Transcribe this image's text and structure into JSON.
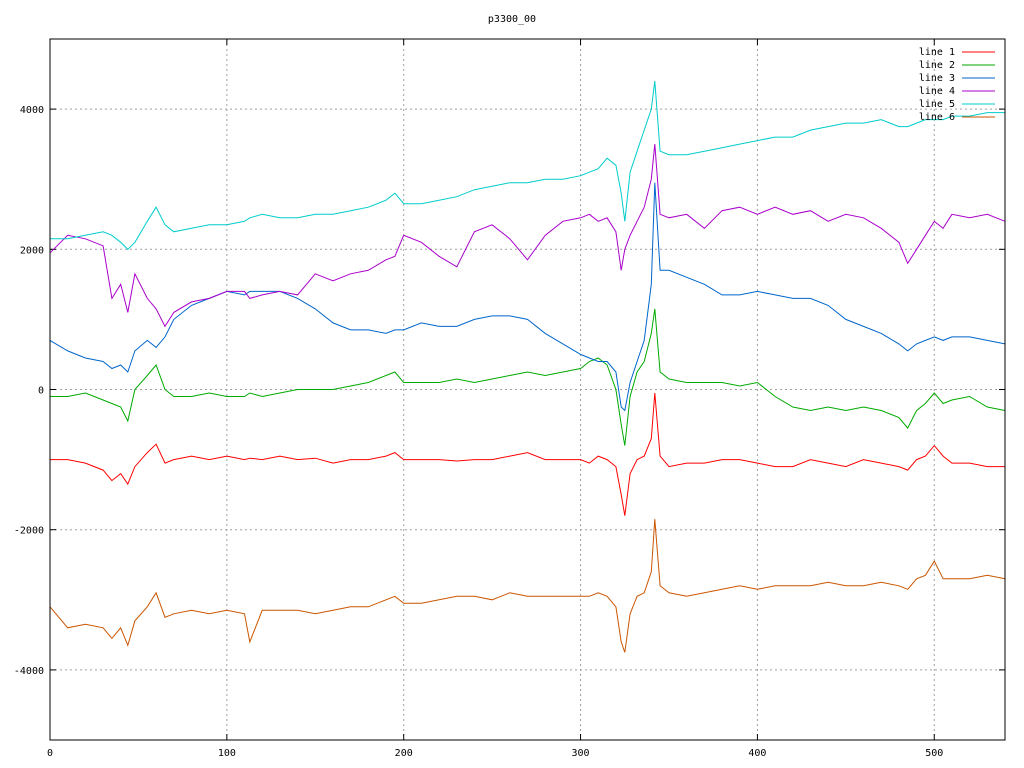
{
  "chart_data": {
    "type": "line",
    "title": "p3300_00",
    "xlim": [
      0,
      540
    ],
    "ylim": [
      -5000,
      5000
    ],
    "x_ticks": [
      0,
      100,
      200,
      300,
      400,
      500
    ],
    "y_ticks": [
      -4000,
      -2000,
      0,
      2000,
      4000
    ],
    "y_tick_labels": [
      "-4000",
      "-2000",
      "0",
      "2000",
      "4000"
    ],
    "grid": true,
    "legend_position": "top-right",
    "x": [
      0,
      10,
      20,
      30,
      35,
      40,
      44,
      48,
      55,
      60,
      65,
      70,
      80,
      90,
      100,
      110,
      113,
      120,
      130,
      140,
      150,
      160,
      170,
      180,
      190,
      195,
      200,
      210,
      220,
      230,
      240,
      250,
      260,
      270,
      280,
      290,
      300,
      305,
      310,
      315,
      320,
      323,
      325,
      328,
      332,
      336,
      340,
      342,
      345,
      350,
      360,
      370,
      380,
      390,
      400,
      410,
      420,
      430,
      440,
      450,
      460,
      470,
      480,
      485,
      490,
      495,
      500,
      505,
      510,
      520,
      530,
      540
    ],
    "series": [
      {
        "name": "line 1",
        "color": "#ff0000",
        "values": [
          -1000,
          -1000,
          -1050,
          -1150,
          -1300,
          -1200,
          -1350,
          -1100,
          -900,
          -780,
          -1050,
          -1000,
          -950,
          -1000,
          -950,
          -1000,
          -980,
          -1000,
          -950,
          -1000,
          -980,
          -1050,
          -1000,
          -1000,
          -950,
          -900,
          -1000,
          -1000,
          -1000,
          -1020,
          -1000,
          -1000,
          -950,
          -900,
          -1000,
          -1000,
          -1000,
          -1050,
          -950,
          -1000,
          -1100,
          -1500,
          -1800,
          -1200,
          -1000,
          -950,
          -700,
          -50,
          -950,
          -1100,
          -1050,
          -1050,
          -1000,
          -1000,
          -1050,
          -1100,
          -1100,
          -1000,
          -1050,
          -1100,
          -1000,
          -1050,
          -1100,
          -1150,
          -1000,
          -950,
          -800,
          -950,
          -1050,
          -1050,
          -1100,
          -1100
        ]
      },
      {
        "name": "line 2",
        "color": "#00aa00",
        "values": [
          -100,
          -100,
          -50,
          -150,
          -200,
          -250,
          -450,
          0,
          200,
          350,
          0,
          -100,
          -100,
          -50,
          -100,
          -100,
          -50,
          -100,
          -50,
          0,
          0,
          0,
          50,
          100,
          200,
          250,
          100,
          100,
          100,
          150,
          100,
          150,
          200,
          250,
          200,
          250,
          300,
          400,
          450,
          350,
          0,
          -500,
          -800,
          -100,
          250,
          400,
          800,
          1150,
          250,
          150,
          100,
          100,
          100,
          50,
          100,
          -100,
          -250,
          -300,
          -250,
          -300,
          -250,
          -300,
          -400,
          -550,
          -300,
          -200,
          -50,
          -200,
          -150,
          -100,
          -250,
          -300
        ]
      },
      {
        "name": "line 3",
        "color": "#0066cc",
        "values": [
          700,
          550,
          450,
          400,
          300,
          350,
          250,
          550,
          700,
          600,
          750,
          1000,
          1200,
          1300,
          1400,
          1350,
          1400,
          1400,
          1400,
          1300,
          1150,
          950,
          850,
          850,
          800,
          850,
          850,
          950,
          900,
          900,
          1000,
          1050,
          1050,
          1000,
          800,
          650,
          500,
          450,
          400,
          400,
          250,
          -250,
          -300,
          100,
          400,
          700,
          1500,
          2950,
          1700,
          1700,
          1600,
          1500,
          1350,
          1350,
          1400,
          1350,
          1300,
          1300,
          1200,
          1000,
          900,
          800,
          650,
          550,
          650,
          700,
          750,
          700,
          750,
          750,
          700,
          650
        ]
      },
      {
        "name": "line 4",
        "color": "#aa00cc",
        "values": [
          1950,
          2200,
          2150,
          2050,
          1300,
          1500,
          1100,
          1650,
          1300,
          1150,
          900,
          1100,
          1250,
          1300,
          1400,
          1400,
          1300,
          1350,
          1400,
          1350,
          1650,
          1550,
          1650,
          1700,
          1850,
          1900,
          2200,
          2100,
          1900,
          1750,
          2250,
          2350,
          2150,
          1850,
          2200,
          2400,
          2450,
          2500,
          2400,
          2450,
          2250,
          1700,
          2000,
          2200,
          2400,
          2600,
          3000,
          3500,
          2500,
          2450,
          2500,
          2300,
          2550,
          2600,
          2500,
          2600,
          2500,
          2550,
          2400,
          2500,
          2450,
          2300,
          2100,
          1800,
          2000,
          2200,
          2400,
          2300,
          2500,
          2450,
          2500,
          2400
        ]
      },
      {
        "name": "line 5",
        "color": "#00cccc",
        "values": [
          2150,
          2150,
          2200,
          2250,
          2200,
          2100,
          2000,
          2100,
          2400,
          2600,
          2350,
          2250,
          2300,
          2350,
          2350,
          2400,
          2450,
          2500,
          2450,
          2450,
          2500,
          2500,
          2550,
          2600,
          2700,
          2800,
          2650,
          2650,
          2700,
          2750,
          2850,
          2900,
          2950,
          2950,
          3000,
          3000,
          3050,
          3100,
          3150,
          3300,
          3200,
          2800,
          2400,
          3100,
          3400,
          3700,
          4000,
          4400,
          3400,
          3350,
          3350,
          3400,
          3450,
          3500,
          3550,
          3600,
          3600,
          3700,
          3750,
          3800,
          3800,
          3850,
          3750,
          3750,
          3800,
          3850,
          3850,
          3850,
          3900,
          3900,
          3950,
          3950
        ]
      },
      {
        "name": "line 6",
        "color": "#cc5500",
        "values": [
          -3100,
          -3400,
          -3350,
          -3400,
          -3550,
          -3400,
          -3650,
          -3300,
          -3100,
          -2900,
          -3250,
          -3200,
          -3150,
          -3200,
          -3150,
          -3200,
          -3600,
          -3150,
          -3150,
          -3150,
          -3200,
          -3150,
          -3100,
          -3100,
          -3000,
          -2950,
          -3050,
          -3050,
          -3000,
          -2950,
          -2950,
          -3000,
          -2900,
          -2950,
          -2950,
          -2950,
          -2950,
          -2950,
          -2900,
          -2950,
          -3100,
          -3600,
          -3750,
          -3200,
          -2950,
          -2900,
          -2600,
          -1850,
          -2800,
          -2900,
          -2950,
          -2900,
          -2850,
          -2800,
          -2850,
          -2800,
          -2800,
          -2800,
          -2750,
          -2800,
          -2800,
          -2750,
          -2800,
          -2850,
          -2700,
          -2650,
          -2450,
          -2700,
          -2700,
          -2700,
          -2650,
          -2700
        ]
      }
    ]
  }
}
